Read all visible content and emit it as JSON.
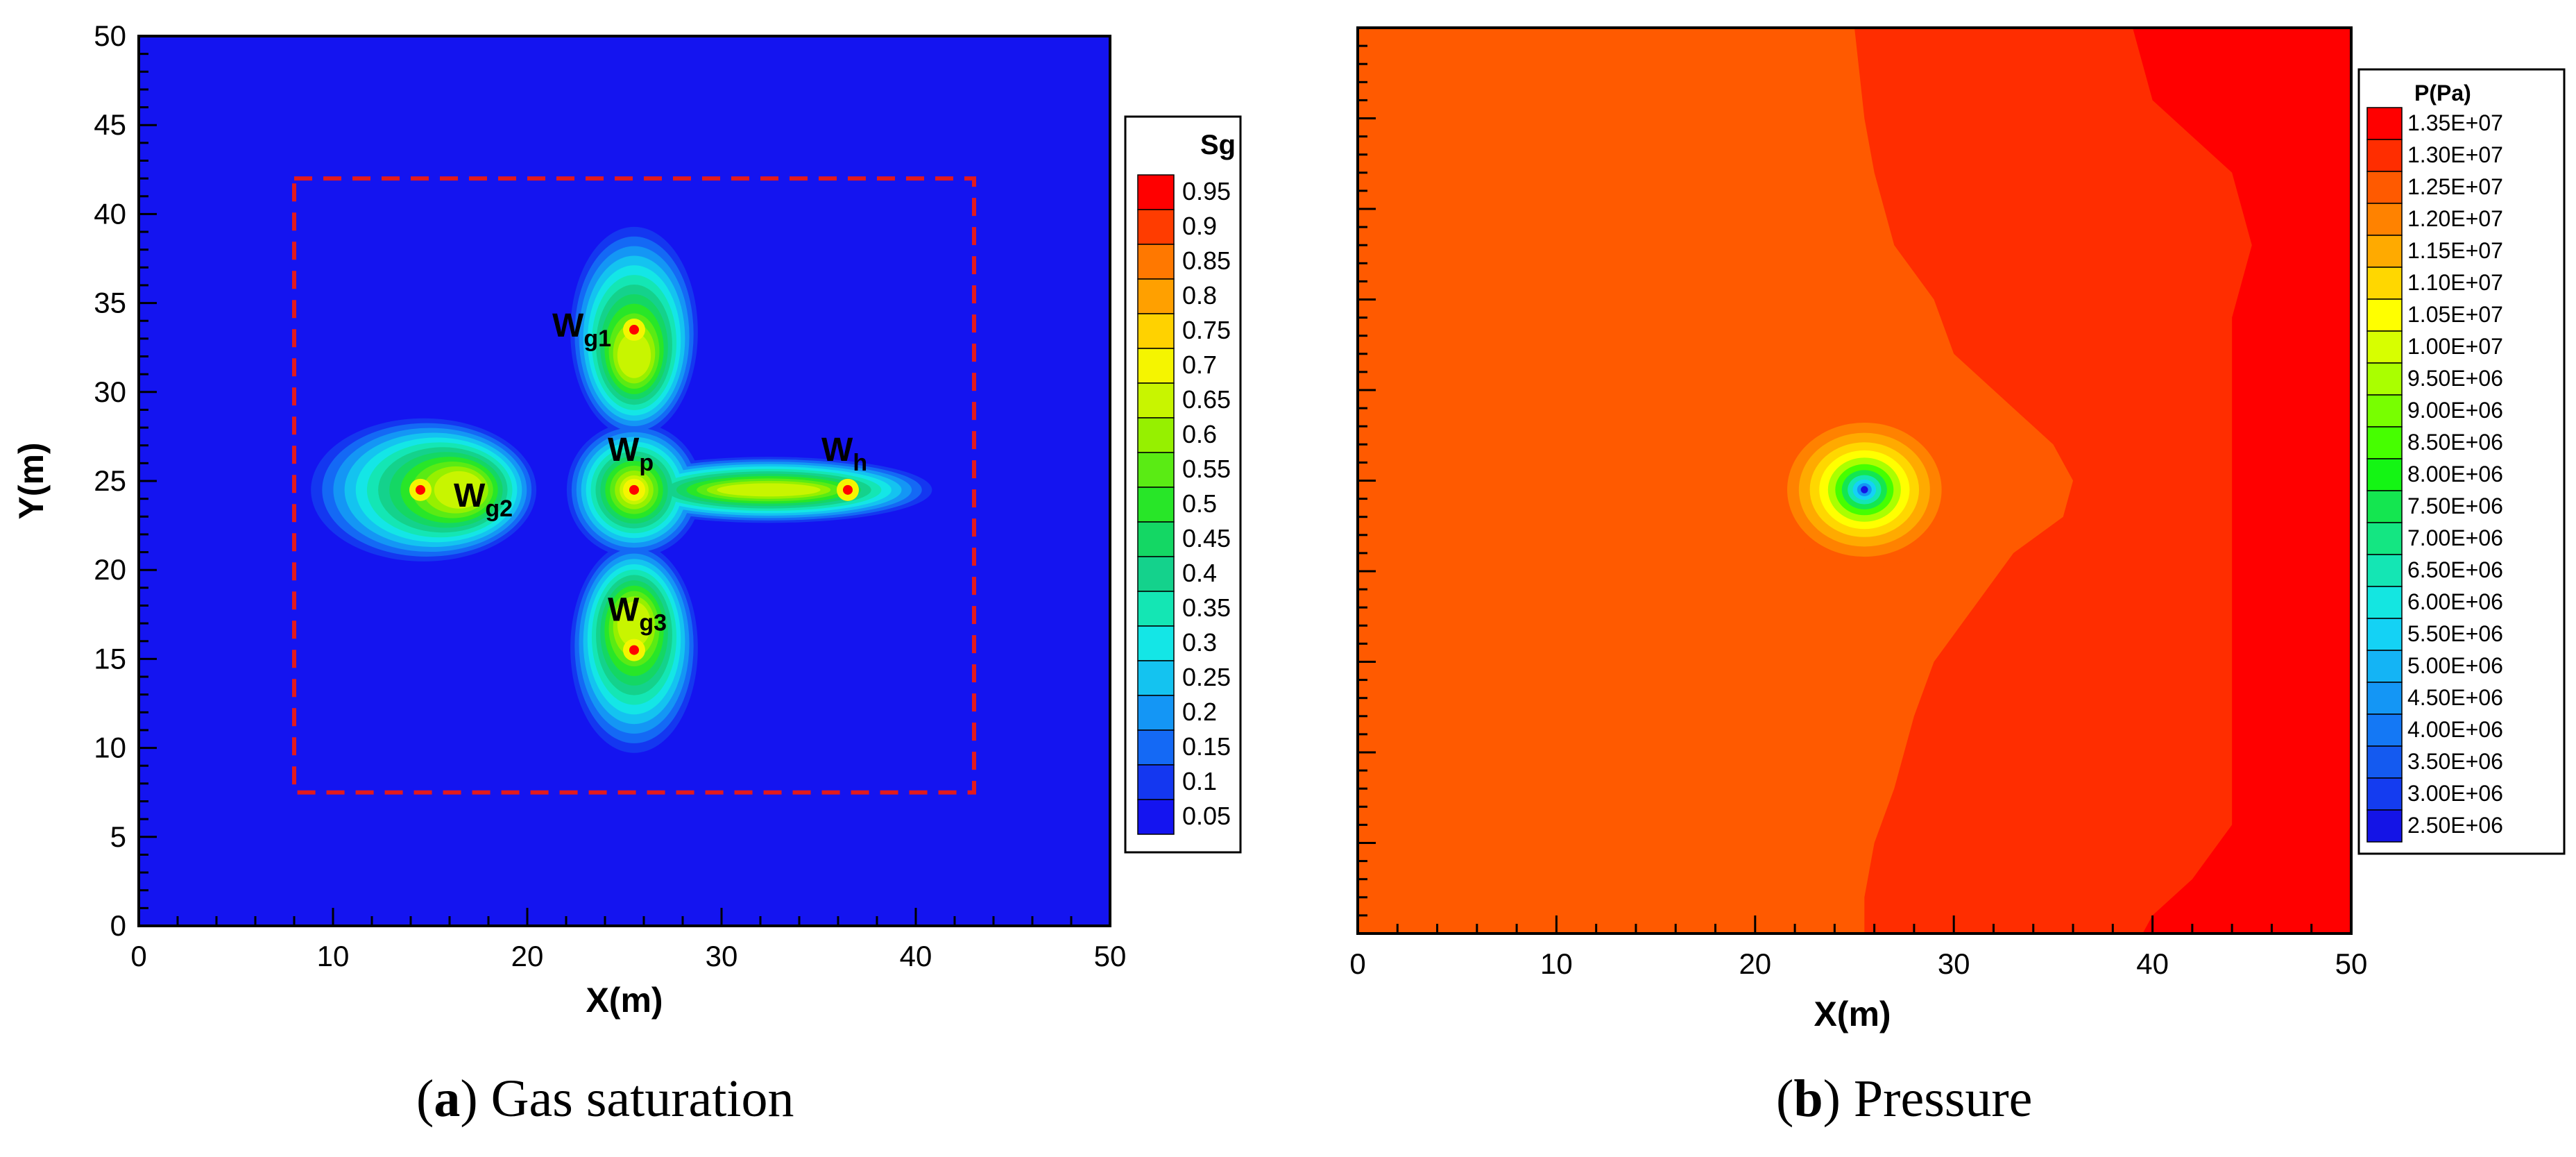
{
  "colors": {
    "frame": "#000000",
    "dashed_box": "#e31a1c",
    "background_panel_a": "#1414f0"
  },
  "panel_a": {
    "caption_letter": "a",
    "caption_text": "Gas saturation",
    "xlabel": "X(m)",
    "ylabel": "Y(m)",
    "legend_title": "Sg",
    "wells": [
      {
        "base": "W",
        "sub": "g1",
        "x": 25.5,
        "y": 33.5
      },
      {
        "base": "W",
        "sub": "g2",
        "x": 14.5,
        "y": 24.5
      },
      {
        "base": "W",
        "sub": "p",
        "x": 25.5,
        "y": 24.5
      },
      {
        "base": "W",
        "sub": "h",
        "x": 36.5,
        "y": 24.5
      },
      {
        "base": "W",
        "sub": "g3",
        "x": 25.5,
        "y": 15.5
      }
    ]
  },
  "panel_b": {
    "caption_letter": "b",
    "caption_text": "Pressure",
    "xlabel": "X(m)",
    "legend_title": "P(Pa)"
  },
  "chart_data": [
    {
      "type": "heatmap",
      "title": "Gas saturation",
      "xlabel": "X(m)",
      "ylabel": "Y(m)",
      "xlim": [
        0,
        50
      ],
      "ylim": [
        0,
        50
      ],
      "xticks": [
        "0",
        "10",
        "20",
        "30",
        "40",
        "50"
      ],
      "yticks": [
        "0",
        "5",
        "10",
        "15",
        "20",
        "25",
        "30",
        "35",
        "40",
        "45",
        "50"
      ],
      "variable": "Sg",
      "levels": [
        "0.95",
        "0.9",
        "0.85",
        "0.8",
        "0.75",
        "0.7",
        "0.65",
        "0.6",
        "0.55",
        "0.5",
        "0.45",
        "0.4",
        "0.35",
        "0.3",
        "0.25",
        "0.2",
        "0.15",
        "0.1",
        "0.05"
      ],
      "level_colors": [
        "#ff0000",
        "#ff3c00",
        "#ff7800",
        "#ffa000",
        "#ffd200",
        "#f5f500",
        "#c8f500",
        "#96f000",
        "#5aeb14",
        "#28e628",
        "#14d764",
        "#14d28c",
        "#14e6b4",
        "#14e6e6",
        "#14c3f0",
        "#1496f5",
        "#1469f5",
        "#1437f0",
        "#1414f0"
      ],
      "region_of_interest": {
        "x": [
          8,
          43
        ],
        "y": [
          7.5,
          42
        ]
      }
    },
    {
      "type": "heatmap",
      "title": "Pressure",
      "xlabel": "X(m)",
      "ylabel": "",
      "xlim": [
        0,
        50
      ],
      "ylim": [
        0,
        50
      ],
      "xticks": [
        "0",
        "10",
        "20",
        "30",
        "40",
        "50"
      ],
      "variable": "P(Pa)",
      "levels": [
        "1.35E+07",
        "1.30E+07",
        "1.25E+07",
        "1.20E+07",
        "1.15E+07",
        "1.10E+07",
        "1.05E+07",
        "1.00E+07",
        "9.50E+06",
        "9.00E+06",
        "8.50E+06",
        "8.00E+06",
        "7.50E+06",
        "7.00E+06",
        "6.50E+06",
        "6.00E+06",
        "5.50E+06",
        "5.00E+06",
        "4.50E+06",
        "4.00E+06",
        "3.50E+06",
        "3.00E+06",
        "2.50E+06"
      ],
      "level_colors": [
        "#ff0000",
        "#ff2d00",
        "#ff5a00",
        "#ff8200",
        "#ffaa00",
        "#ffd700",
        "#ffff00",
        "#d7ff00",
        "#aaff00",
        "#78ff00",
        "#46ff00",
        "#14f514",
        "#14e650",
        "#14e682",
        "#14e6b4",
        "#14e6e1",
        "#14d2f5",
        "#14b4f5",
        "#1496f5",
        "#1478f5",
        "#145af0",
        "#143cf0",
        "#1414e6"
      ]
    }
  ]
}
